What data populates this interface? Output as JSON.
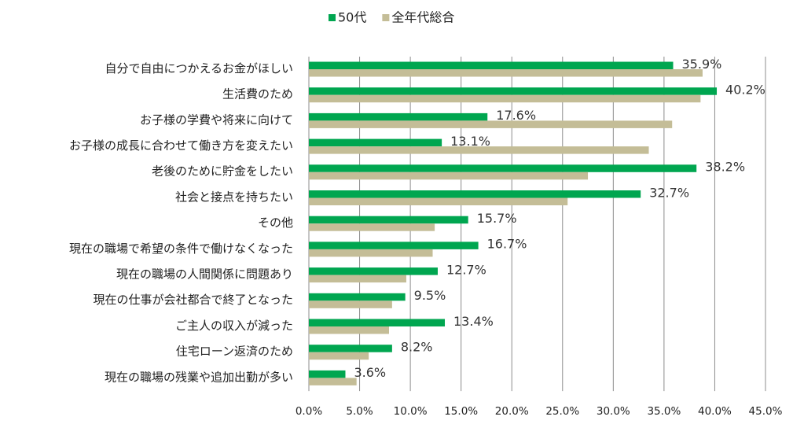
{
  "chart_data": {
    "type": "bar",
    "orientation": "horizontal",
    "title": "",
    "xlabel": "",
    "ylabel": "",
    "xlim": [
      0,
      45
    ],
    "tick_step": 5,
    "tick_labels": [
      "0.0%",
      "5.0%",
      "10.0%",
      "15.0%",
      "20.0%",
      "25.0%",
      "30.0%",
      "35.0%",
      "40.0%",
      "45.0%"
    ],
    "grid": true,
    "legend_position": "top-center",
    "categories": [
      "自分で自由につかえるお金がほしい",
      "生活費のため",
      "お子様の学費や将来に向けて",
      "お子様の成長に合わせて働き方を変えたい",
      "老後のために貯金をしたい",
      "社会と接点を持ちたい",
      "その他",
      "現在の職場で希望の条件で働けなくなった",
      "現在の職場の人間関係に問題あり",
      "現在の仕事が会社都合で終了となった",
      "ご主人の収入が減った",
      "住宅ローン返済のため",
      "現在の職場の残業や追加出勤が多い"
    ],
    "series": [
      {
        "name": "50代",
        "color": "#00a650",
        "values": [
          35.9,
          40.2,
          17.6,
          13.1,
          38.2,
          32.7,
          15.7,
          16.7,
          12.7,
          9.5,
          13.4,
          8.2,
          3.6
        ],
        "labels": [
          "35.9%",
          "40.2%",
          "17.6%",
          "13.1%",
          "38.2%",
          "32.7%",
          "15.7%",
          "16.7%",
          "12.7%",
          "9.5%",
          "13.4%",
          "8.2%",
          "3.6%"
        ]
      },
      {
        "name": "全年代総合",
        "color": "#c4bd97",
        "values": [
          38.8,
          38.6,
          35.8,
          33.5,
          27.5,
          25.5,
          12.4,
          12.2,
          9.6,
          8.2,
          7.9,
          5.9,
          4.7
        ],
        "labels": []
      }
    ]
  }
}
